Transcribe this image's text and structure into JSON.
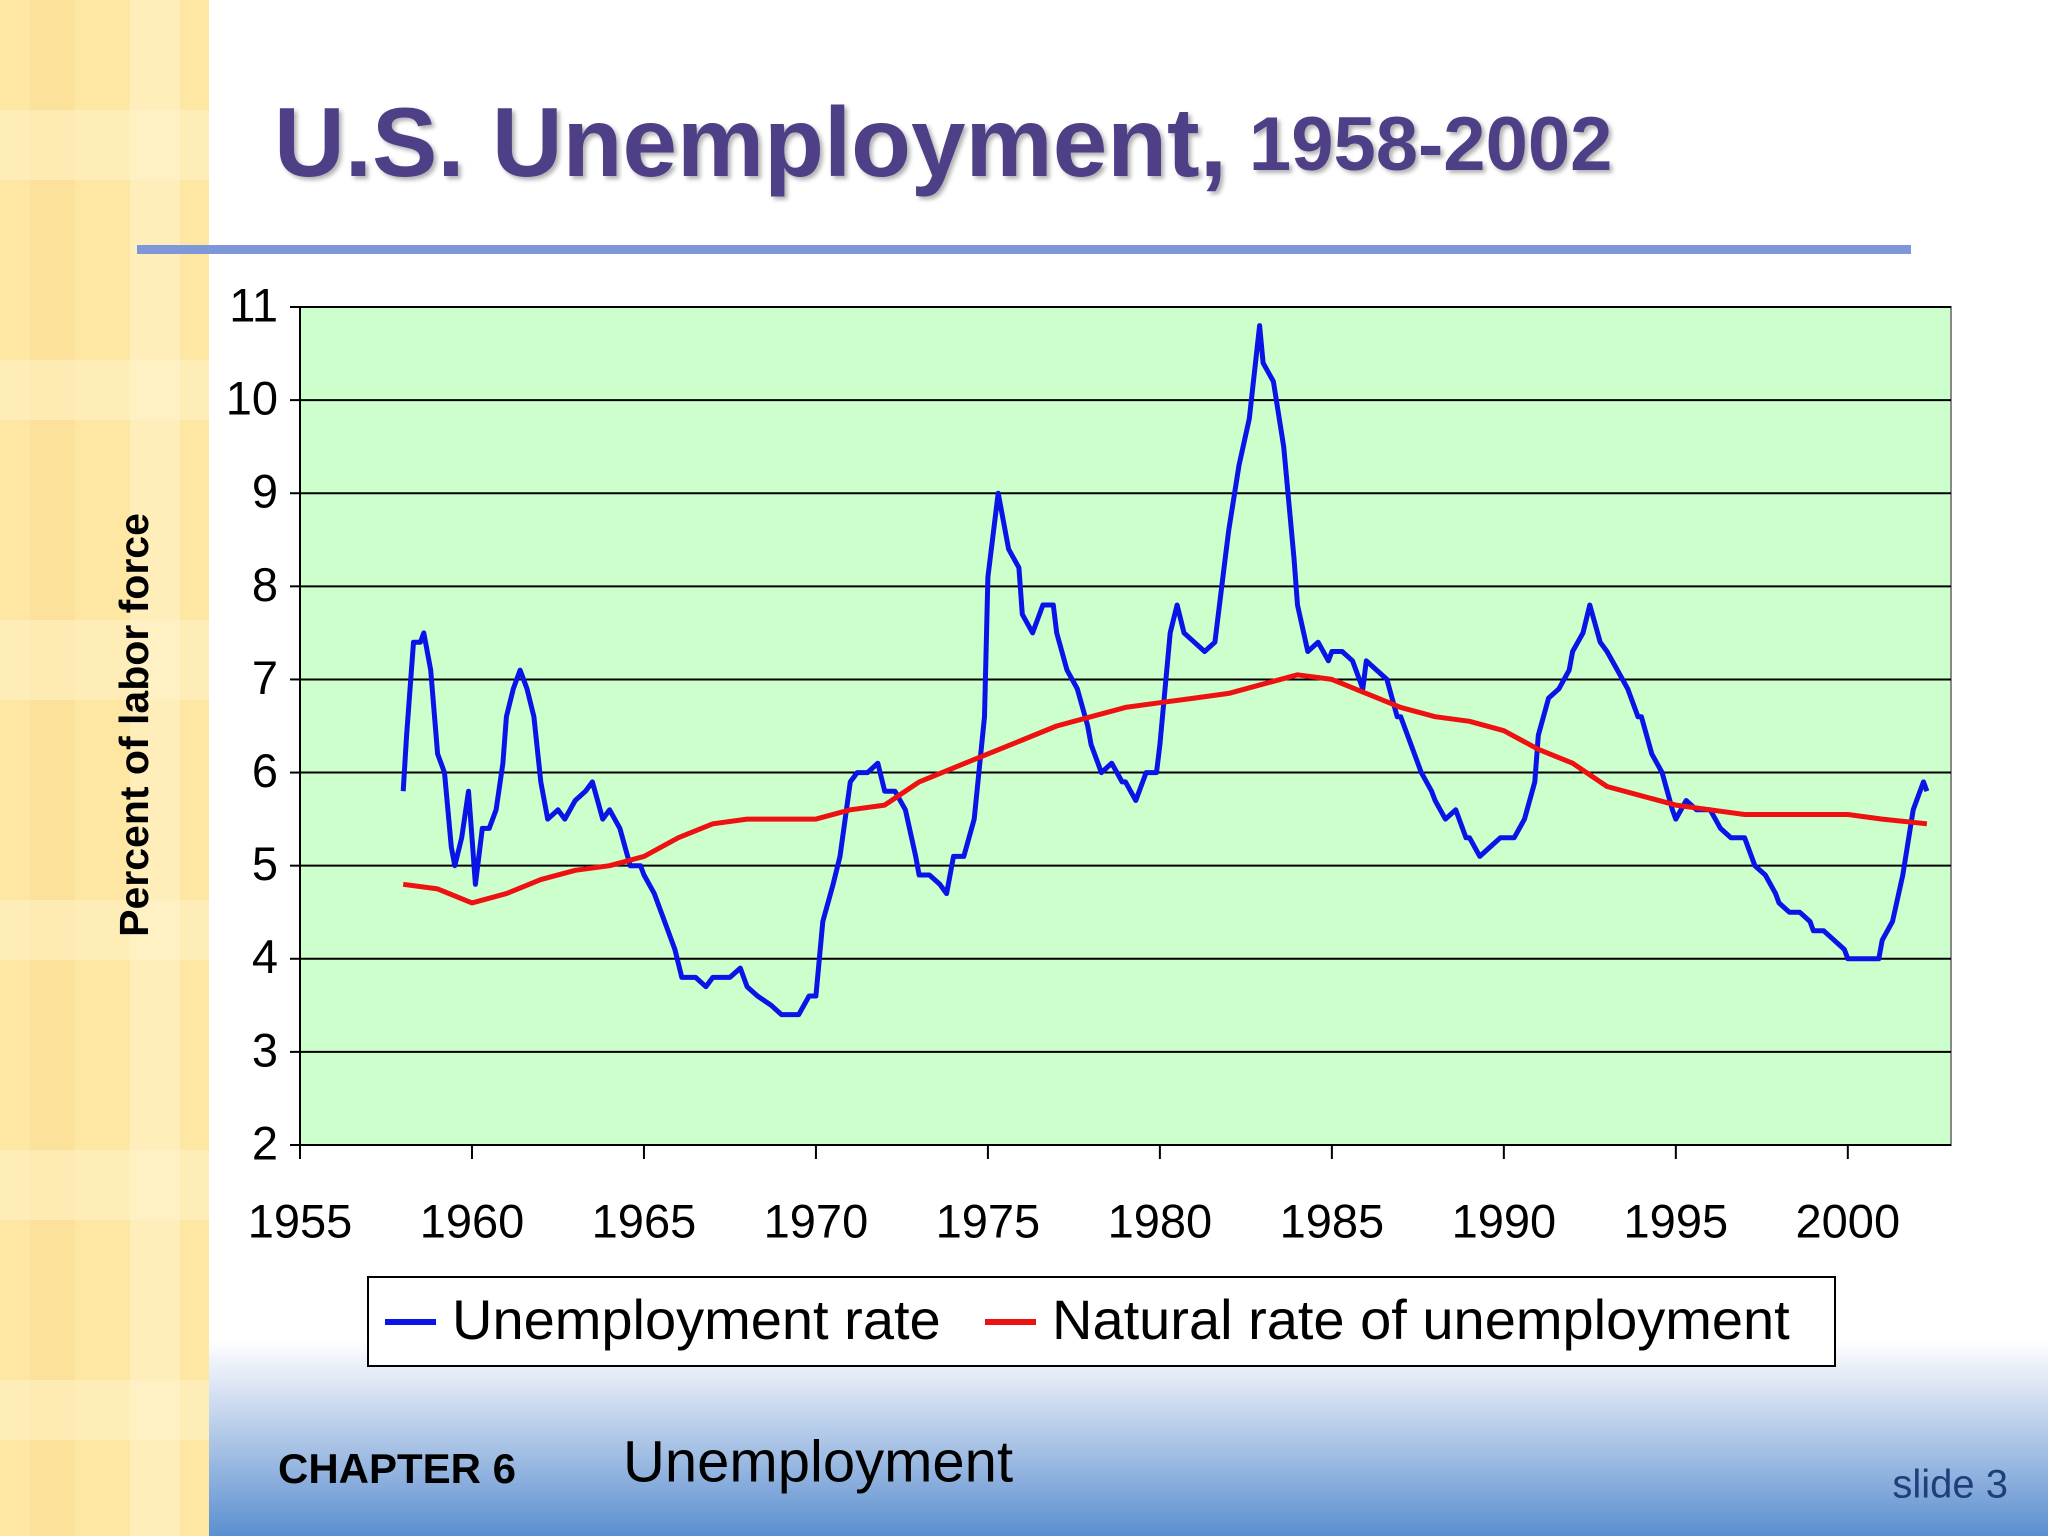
{
  "chart_data": {
    "type": "line",
    "title": "U.S. Unemployment,",
    "subtitle": "1958-2002",
    "y_label": "Percent of labor force",
    "xlim": [
      1955,
      2003
    ],
    "xticks": [
      1955,
      1960,
      1965,
      1970,
      1975,
      1980,
      1985,
      1990,
      1995,
      2000
    ],
    "ylim": [
      2,
      11
    ],
    "yticks": [
      2,
      3,
      4,
      5,
      6,
      7,
      8,
      9,
      10,
      11
    ],
    "grid": true,
    "background": "#ccffcc",
    "series": [
      {
        "name": "Unemployment rate",
        "color": "#0a14e6",
        "x": [
          1958.0,
          1958.1,
          1958.3,
          1958.5,
          1958.6,
          1958.8,
          1959.0,
          1959.2,
          1959.4,
          1959.5,
          1959.7,
          1959.9,
          1960.0,
          1960.1,
          1960.3,
          1960.5,
          1960.7,
          1960.9,
          1961.0,
          1961.2,
          1961.4,
          1961.6,
          1961.8,
          1962.0,
          1962.2,
          1962.5,
          1962.7,
          1963.0,
          1963.3,
          1963.5,
          1963.8,
          1964.0,
          1964.3,
          1964.6,
          1964.9,
          1965.0,
          1965.3,
          1965.6,
          1965.9,
          1966.1,
          1966.5,
          1966.8,
          1967.0,
          1967.5,
          1967.8,
          1968.0,
          1968.3,
          1968.7,
          1969.0,
          1969.5,
          1969.8,
          1970.0,
          1970.2,
          1970.5,
          1970.7,
          1971.0,
          1971.2,
          1971.5,
          1971.8,
          1972.0,
          1972.3,
          1972.6,
          1972.9,
          1973.0,
          1973.3,
          1973.6,
          1973.8,
          1974.0,
          1974.3,
          1974.6,
          1974.9,
          1975.0,
          1975.3,
          1975.6,
          1975.9,
          1976.0,
          1976.3,
          1976.6,
          1976.9,
          1977.0,
          1977.3,
          1977.6,
          1977.9,
          1978.0,
          1978.3,
          1978.6,
          1978.9,
          1979.0,
          1979.3,
          1979.6,
          1979.9,
          1980.0,
          1980.3,
          1980.5,
          1980.7,
          1981.0,
          1981.3,
          1981.6,
          1981.9,
          1982.0,
          1982.3,
          1982.6,
          1982.9,
          1983.0,
          1983.3,
          1983.6,
          1983.9,
          1984.0,
          1984.3,
          1984.6,
          1984.9,
          1985.0,
          1985.3,
          1985.6,
          1985.9,
          1986.0,
          1986.3,
          1986.6,
          1986.9,
          1987.0,
          1987.3,
          1987.6,
          1987.9,
          1988.0,
          1988.3,
          1988.6,
          1988.9,
          1989.0,
          1989.3,
          1989.6,
          1989.9,
          1990.0,
          1990.3,
          1990.6,
          1990.9,
          1991.0,
          1991.3,
          1991.6,
          1991.9,
          1992.0,
          1992.3,
          1992.5,
          1992.8,
          1993.0,
          1993.3,
          1993.6,
          1993.9,
          1994.0,
          1994.3,
          1994.6,
          1994.9,
          1995.0,
          1995.3,
          1995.6,
          1995.9,
          1996.0,
          1996.3,
          1996.6,
          1996.9,
          1997.0,
          1997.3,
          1997.6,
          1997.9,
          1998.0,
          1998.3,
          1998.6,
          1998.9,
          1999.0,
          1999.3,
          1999.6,
          1999.9,
          2000.0,
          2000.3,
          2000.6,
          2000.9,
          2001.0,
          2001.3,
          2001.6,
          2001.9,
          2002.0,
          2002.2,
          2002.3
        ],
        "values": [
          5.8,
          6.4,
          7.4,
          7.4,
          7.5,
          7.1,
          6.2,
          6.0,
          5.2,
          5.0,
          5.3,
          5.8,
          5.3,
          4.8,
          5.4,
          5.4,
          5.6,
          6.1,
          6.6,
          6.9,
          7.1,
          6.9,
          6.6,
          5.9,
          5.5,
          5.6,
          5.5,
          5.7,
          5.8,
          5.9,
          5.5,
          5.6,
          5.4,
          5.0,
          5.0,
          4.9,
          4.7,
          4.4,
          4.1,
          3.8,
          3.8,
          3.7,
          3.8,
          3.8,
          3.9,
          3.7,
          3.6,
          3.5,
          3.4,
          3.4,
          3.6,
          3.6,
          4.4,
          4.8,
          5.1,
          5.9,
          6.0,
          6.0,
          6.1,
          5.8,
          5.8,
          5.6,
          5.1,
          4.9,
          4.9,
          4.8,
          4.7,
          5.1,
          5.1,
          5.5,
          6.6,
          8.1,
          9.0,
          8.4,
          8.2,
          7.7,
          7.5,
          7.8,
          7.8,
          7.5,
          7.1,
          6.9,
          6.5,
          6.3,
          6.0,
          6.1,
          5.9,
          5.9,
          5.7,
          6.0,
          6.0,
          6.3,
          7.5,
          7.8,
          7.5,
          7.4,
          7.3,
          7.4,
          8.3,
          8.6,
          9.3,
          9.8,
          10.8,
          10.4,
          10.2,
          9.5,
          8.3,
          7.8,
          7.3,
          7.4,
          7.2,
          7.3,
          7.3,
          7.2,
          6.9,
          7.2,
          7.1,
          7.0,
          6.6,
          6.6,
          6.3,
          6.0,
          5.8,
          5.7,
          5.5,
          5.6,
          5.3,
          5.3,
          5.1,
          5.2,
          5.3,
          5.3,
          5.3,
          5.5,
          5.9,
          6.4,
          6.8,
          6.9,
          7.1,
          7.3,
          7.5,
          7.8,
          7.4,
          7.3,
          7.1,
          6.9,
          6.6,
          6.6,
          6.2,
          6.0,
          5.6,
          5.5,
          5.7,
          5.6,
          5.6,
          5.6,
          5.4,
          5.3,
          5.3,
          5.3,
          5.0,
          4.9,
          4.7,
          4.6,
          4.5,
          4.5,
          4.4,
          4.3,
          4.3,
          4.2,
          4.1,
          4.0,
          4.0,
          4.0,
          4.0,
          4.2,
          4.4,
          4.9,
          5.6,
          5.7,
          5.9,
          5.8
        ]
      },
      {
        "name": "Natural rate of unemployment",
        "color": "#ee1111",
        "x": [
          1958,
          1959,
          1960,
          1961,
          1962,
          1963,
          1964,
          1965,
          1966,
          1967,
          1968,
          1969,
          1970,
          1971,
          1972,
          1973,
          1974,
          1975,
          1976,
          1977,
          1978,
          1979,
          1980,
          1981,
          1982,
          1983,
          1984,
          1985,
          1986,
          1987,
          1988,
          1989,
          1990,
          1991,
          1992,
          1993,
          1994,
          1995,
          1996,
          1997,
          1998,
          1999,
          2000,
          2001,
          2002.3
        ],
        "values": [
          4.8,
          4.75,
          4.6,
          4.7,
          4.85,
          4.95,
          5.0,
          5.1,
          5.3,
          5.45,
          5.5,
          5.5,
          5.5,
          5.6,
          5.65,
          5.9,
          6.05,
          6.2,
          6.35,
          6.5,
          6.6,
          6.7,
          6.75,
          6.8,
          6.85,
          6.95,
          7.05,
          7.0,
          6.85,
          6.7,
          6.6,
          6.55,
          6.45,
          6.25,
          6.1,
          5.85,
          5.75,
          5.65,
          5.6,
          5.55,
          5.55,
          5.55,
          5.55,
          5.5,
          5.45
        ]
      }
    ]
  },
  "footer": {
    "chapter": "CHAPTER 6",
    "topic": "Unemployment",
    "slide": "slide 3"
  }
}
